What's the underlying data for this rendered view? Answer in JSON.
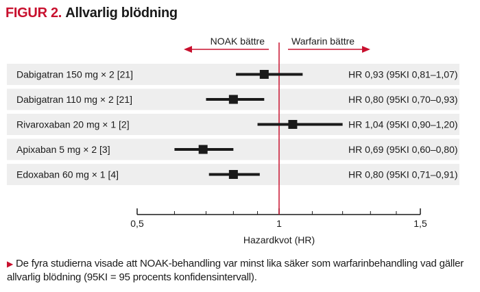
{
  "figure": {
    "label": "FIGUR 2.",
    "title": "Allvarlig blödning",
    "footnote": "De fyra studierna visade att NOAK-behandling var minst lika säker som warfarinbehandling vad gäller allvarlig blödning (95KI = 95 procents konfidensintervall)."
  },
  "colors": {
    "accent": "#c8102e",
    "row_band": "#eeeeee",
    "marker": "#1a1a1a"
  },
  "chart_data": {
    "type": "forest",
    "scale": "log",
    "xlabel": "Hazardkvot (HR)",
    "xlim": [
      0.5,
      1.5
    ],
    "ticks": [
      0.5,
      1,
      1.5
    ],
    "tick_labels": [
      "0,5",
      "1",
      "1,5"
    ],
    "minor_ticks": [
      0.6,
      0.7,
      0.8,
      0.9,
      1.1,
      1.2,
      1.3,
      1.4
    ],
    "reference_line": 1,
    "direction_left": "NOAK bättre",
    "direction_right": "Warfarin bättre",
    "rows": [
      {
        "label": "Dabigatran 150 mg × 2 [21]",
        "hr": 0.93,
        "lo": 0.81,
        "hi": 1.07,
        "text": "HR 0,93 (95KI 0,81–1,07)"
      },
      {
        "label": "Dabigatran 110 mg × 2 [21]",
        "hr": 0.8,
        "lo": 0.7,
        "hi": 0.93,
        "text": "HR 0,80 (95KI 0,70–0,93)"
      },
      {
        "label": "Rivaroxaban 20 mg × 1 [2]",
        "hr": 1.04,
        "lo": 0.9,
        "hi": 1.2,
        "text": "HR 1,04 (95KI 0,90–1,20)"
      },
      {
        "label": "Apixaban 5 mg × 2 [3]",
        "hr": 0.69,
        "lo": 0.6,
        "hi": 0.8,
        "text": "HR 0,69 (95KI 0,60–0,80)"
      },
      {
        "label": "Edoxaban 60 mg × 1 [4]",
        "hr": 0.8,
        "lo": 0.71,
        "hi": 0.91,
        "text": "HR 0,80 (95KI 0,71–0,91)"
      }
    ]
  }
}
